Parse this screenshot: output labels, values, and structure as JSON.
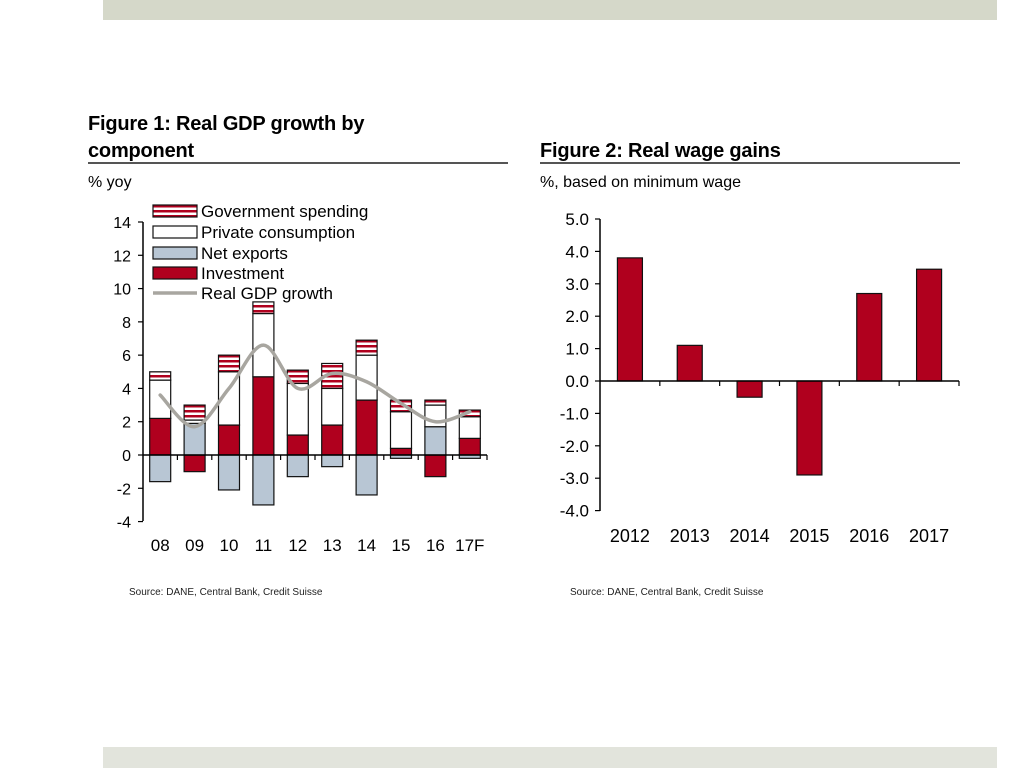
{
  "figure1": {
    "title_line1": "Figure 1: Real GDP growth by",
    "title_line2": "component",
    "subtitle": "% yoy",
    "source": "Source: DANE, Central Bank, Credit Suisse"
  },
  "figure2": {
    "title": "Figure 2: Real wage gains",
    "subtitle": "%, based on minimum wage",
    "source": "Source: DANE, Central Bank, Credit Suisse"
  },
  "colors": {
    "investment": "#b0001e",
    "net_exports": "#b8c6d4",
    "private_consumption": "#ffffff",
    "government_spending_stripe": "#b0001e",
    "gdp_line": "#a8a6a0",
    "wage_bar": "#b0001e",
    "band_top": "#d5d8c9",
    "band_bottom": "#e2e4dc"
  },
  "chart_data": [
    {
      "type": "bar",
      "stacked": true,
      "title": "Figure 1: Real GDP growth by component",
      "ylabel": "% yoy",
      "xlabel": "",
      "ylim": [
        -4,
        14
      ],
      "yticks": [
        14,
        12,
        10,
        8,
        6,
        4,
        2,
        0,
        -2,
        -4
      ],
      "legend_position": "top-left",
      "grid": false,
      "categories": [
        "08",
        "09",
        "10",
        "11",
        "12",
        "13",
        "14",
        "15",
        "16",
        "17F"
      ],
      "series": [
        {
          "name": "Government spending",
          "key": "government_spending",
          "values": [
            0.5,
            0.9,
            1.0,
            0.7,
            0.8,
            1.5,
            0.9,
            0.7,
            0.3,
            0.4
          ]
        },
        {
          "name": "Private consumption",
          "key": "private_consumption",
          "values": [
            2.3,
            0.2,
            3.2,
            3.8,
            3.1,
            2.2,
            2.7,
            2.2,
            1.3,
            1.3
          ]
        },
        {
          "name": "Net exports",
          "key": "net_exports",
          "values": [
            -1.6,
            1.9,
            -2.1,
            -3.0,
            -1.3,
            -0.7,
            -2.4,
            -0.2,
            1.7,
            -0.2
          ]
        },
        {
          "name": "Investment",
          "key": "investment",
          "values": [
            2.2,
            -1.0,
            1.8,
            4.7,
            1.2,
            1.8,
            3.3,
            0.4,
            -1.3,
            1.0
          ]
        },
        {
          "name": "Real GDP growth",
          "key": "gdp",
          "type": "line",
          "values": [
            3.6,
            1.7,
            4.0,
            6.6,
            4.0,
            4.9,
            4.4,
            3.1,
            2.0,
            2.6
          ]
        }
      ]
    },
    {
      "type": "bar",
      "title": "Figure 2: Real wage gains",
      "ylabel": "%, based on minimum wage",
      "xlabel": "",
      "ylim": [
        -4.0,
        5.0
      ],
      "yticks": [
        "5.0",
        "4.0",
        "3.0",
        "2.0",
        "1.0",
        "0.0",
        "-1.0",
        "-2.0",
        "-3.0",
        "-4.0"
      ],
      "grid": false,
      "categories": [
        "2012",
        "2013",
        "2014",
        "2015",
        "2016",
        "2017"
      ],
      "values": [
        3.8,
        1.1,
        -0.5,
        -2.9,
        2.7,
        3.45
      ]
    }
  ]
}
